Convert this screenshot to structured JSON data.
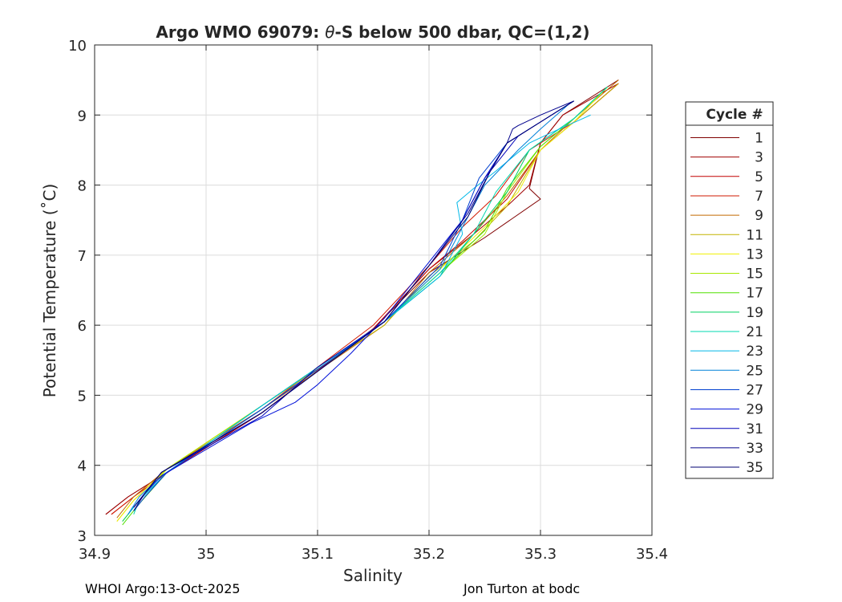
{
  "chart_data": {
    "type": "line",
    "title_prefix": "Argo WMO 69079: ",
    "title_symbol": "θ",
    "title_suffix": "-S below 500 dbar,  QC=(1,2)",
    "xlabel": "Salinity",
    "ylabel": "Potential Temperature (˚C)",
    "xlim": [
      34.9,
      35.4
    ],
    "ylim": [
      3,
      10
    ],
    "xticks": [
      34.9,
      35,
      35.1,
      35.2,
      35.3,
      35.4
    ],
    "xtick_labels": [
      "34.9",
      "35",
      "35.1",
      "35.2",
      "35.3",
      "35.4"
    ],
    "yticks": [
      3,
      4,
      5,
      6,
      7,
      8,
      9,
      10
    ],
    "ytick_labels": [
      "3",
      "4",
      "5",
      "6",
      "7",
      "8",
      "9",
      "10"
    ],
    "grid": true,
    "legend_title": "Cycle #",
    "legend_position": "right, outside",
    "legend_entries": [
      "1",
      "3",
      "5",
      "7",
      "9",
      "11",
      "13",
      "15",
      "17",
      "19",
      "21",
      "23",
      "25",
      "27",
      "29",
      "31",
      "33",
      "35"
    ],
    "series": [
      {
        "name": "1",
        "color": "#800000",
        "s": [
          34.91,
          34.93,
          34.97,
          35.05,
          35.15,
          35.2,
          35.22,
          35.25,
          35.3,
          35.29,
          35.3,
          35.32,
          35.37
        ],
        "t": [
          3.3,
          3.55,
          3.95,
          4.75,
          5.95,
          6.75,
          6.95,
          7.25,
          7.8,
          7.95,
          8.6,
          9.0,
          9.5
        ]
      },
      {
        "name": "3",
        "color": "#a00000",
        "s": [
          34.91,
          34.93,
          34.97,
          35.05,
          35.15,
          35.2,
          35.24,
          35.27,
          35.29,
          35.3,
          35.32,
          35.37
        ],
        "t": [
          3.3,
          3.55,
          3.95,
          4.75,
          5.95,
          6.8,
          7.3,
          7.7,
          8.0,
          8.6,
          9.0,
          9.45
        ]
      },
      {
        "name": "5",
        "color": "#c20000",
        "s": [
          34.915,
          34.935,
          34.97,
          35.05,
          35.15,
          35.2,
          35.23,
          35.27,
          35.3,
          35.33,
          35.37
        ],
        "t": [
          3.3,
          3.55,
          3.95,
          4.75,
          5.95,
          6.8,
          7.2,
          7.8,
          8.5,
          8.9,
          9.45
        ]
      },
      {
        "name": "7",
        "color": "#d21a00",
        "s": [
          34.915,
          34.935,
          34.965,
          35.05,
          35.15,
          35.2,
          35.23,
          35.26,
          35.29,
          35.33,
          35.37
        ],
        "t": [
          3.3,
          3.55,
          3.95,
          4.8,
          6.0,
          6.85,
          7.4,
          7.85,
          8.5,
          8.9,
          9.45
        ]
      },
      {
        "name": "9",
        "color": "#c26a00",
        "s": [
          34.92,
          34.935,
          34.965,
          35.05,
          35.16,
          35.2,
          35.24,
          35.27,
          35.3,
          35.33,
          35.37
        ],
        "t": [
          3.25,
          3.55,
          3.95,
          4.8,
          6.0,
          6.75,
          7.3,
          7.85,
          8.5,
          8.95,
          9.5
        ]
      },
      {
        "name": "11",
        "color": "#c2b400",
        "s": [
          34.92,
          34.935,
          34.965,
          35.05,
          35.16,
          35.2,
          35.24,
          35.27,
          35.3,
          35.33,
          35.37
        ],
        "t": [
          3.2,
          3.5,
          3.95,
          4.85,
          6.0,
          6.7,
          7.2,
          7.7,
          8.5,
          8.9,
          9.45
        ]
      },
      {
        "name": "13",
        "color": "#f0f000",
        "s": [
          34.92,
          34.935,
          34.965,
          35.05,
          35.16,
          35.21,
          35.25,
          35.28,
          35.3,
          35.33,
          35.36
        ],
        "t": [
          3.2,
          3.5,
          3.95,
          4.85,
          6.05,
          6.8,
          7.4,
          7.9,
          8.5,
          8.9,
          9.4
        ]
      },
      {
        "name": "15",
        "color": "#a8e800",
        "s": [
          34.925,
          34.94,
          34.965,
          35.05,
          35.16,
          35.21,
          35.25,
          35.27,
          35.3,
          35.33,
          35.36
        ],
        "t": [
          3.2,
          3.5,
          3.95,
          4.85,
          6.05,
          6.75,
          7.3,
          7.9,
          8.55,
          8.95,
          9.4
        ]
      },
      {
        "name": "17",
        "color": "#50e000",
        "s": [
          34.925,
          34.94,
          34.965,
          35.05,
          35.16,
          35.21,
          35.25,
          35.27,
          35.3,
          35.33,
          35.36
        ],
        "t": [
          3.15,
          3.45,
          3.9,
          4.85,
          6.05,
          6.75,
          7.35,
          7.95,
          8.55,
          8.95,
          9.4
        ]
      },
      {
        "name": "19",
        "color": "#00d060",
        "s": [
          34.925,
          34.94,
          34.965,
          35.05,
          35.16,
          35.21,
          35.24,
          35.27,
          35.29,
          35.33,
          35.36
        ],
        "t": [
          3.2,
          3.5,
          3.9,
          4.85,
          6.05,
          6.7,
          7.3,
          7.9,
          8.5,
          8.95,
          9.4
        ]
      },
      {
        "name": "21",
        "color": "#00d8b0",
        "s": [
          34.935,
          34.94,
          34.965,
          35.05,
          35.16,
          35.21,
          35.24,
          35.26,
          35.29,
          35.33,
          35.36
        ],
        "t": [
          3.3,
          3.5,
          3.9,
          4.85,
          6.05,
          6.75,
          7.3,
          7.9,
          8.5,
          8.95,
          9.4
        ]
      },
      {
        "name": "23",
        "color": "#00b8e8",
        "s": [
          34.93,
          34.94,
          34.965,
          35.05,
          35.16,
          35.21,
          35.23,
          35.225,
          35.24,
          35.26,
          35.29,
          35.31,
          35.345
        ],
        "t": [
          3.3,
          3.5,
          3.9,
          4.85,
          6.05,
          6.7,
          7.3,
          7.75,
          7.95,
          8.2,
          8.6,
          8.75,
          9.0
        ]
      },
      {
        "name": "25",
        "color": "#0080d8",
        "s": [
          34.93,
          34.94,
          34.96,
          35.05,
          35.16,
          35.21,
          35.23,
          35.25,
          35.28,
          35.3,
          35.325
        ],
        "t": [
          3.3,
          3.55,
          3.85,
          4.8,
          6.05,
          6.8,
          7.4,
          8.0,
          8.5,
          8.8,
          9.15
        ]
      },
      {
        "name": "27",
        "color": "#0040d0",
        "s": [
          34.935,
          34.945,
          34.965,
          35.05,
          35.16,
          35.21,
          35.23,
          35.245,
          35.27,
          35.3,
          35.33
        ],
        "t": [
          3.35,
          3.55,
          3.9,
          4.8,
          6.05,
          6.85,
          7.5,
          8.1,
          8.6,
          8.9,
          9.2
        ]
      },
      {
        "name": "29",
        "color": "#0010d8",
        "s": [
          34.935,
          34.945,
          34.96,
          35.04,
          35.08,
          35.1,
          35.13,
          35.16,
          35.2,
          35.23,
          35.25,
          35.27,
          35.3,
          35.33
        ],
        "t": [
          3.4,
          3.6,
          3.85,
          4.6,
          4.9,
          5.15,
          5.6,
          6.1,
          6.9,
          7.5,
          8.1,
          8.6,
          8.9,
          9.2
        ]
      },
      {
        "name": "31",
        "color": "#0000b8",
        "s": [
          34.935,
          34.945,
          34.96,
          35.05,
          35.1,
          35.16,
          35.2,
          35.23,
          35.25,
          35.27,
          35.28,
          35.3,
          35.32
        ],
        "t": [
          3.4,
          3.6,
          3.9,
          4.7,
          5.4,
          6.05,
          6.85,
          7.5,
          8.1,
          8.5,
          8.7,
          8.9,
          9.1
        ]
      },
      {
        "name": "33",
        "color": "#00008c",
        "s": [
          34.935,
          34.945,
          34.96,
          35.05,
          35.16,
          35.2,
          35.235,
          35.255,
          35.27,
          35.275,
          35.28,
          35.3,
          35.33
        ],
        "t": [
          3.4,
          3.6,
          3.9,
          4.75,
          6.05,
          6.85,
          7.6,
          8.2,
          8.6,
          8.8,
          8.85,
          9.0,
          9.2
        ]
      },
      {
        "name": "35",
        "color": "#000070",
        "s": [
          34.935,
          34.945,
          34.96,
          35.05,
          35.16,
          35.2,
          35.235,
          35.255,
          35.27,
          35.3,
          35.33
        ],
        "t": [
          3.35,
          3.6,
          3.9,
          4.75,
          6.05,
          6.85,
          7.55,
          8.2,
          8.6,
          8.9,
          9.2
        ]
      }
    ]
  },
  "footer": {
    "left": "WHOI Argo:13-Oct-2025",
    "right": "Jon Turton at bodc"
  }
}
